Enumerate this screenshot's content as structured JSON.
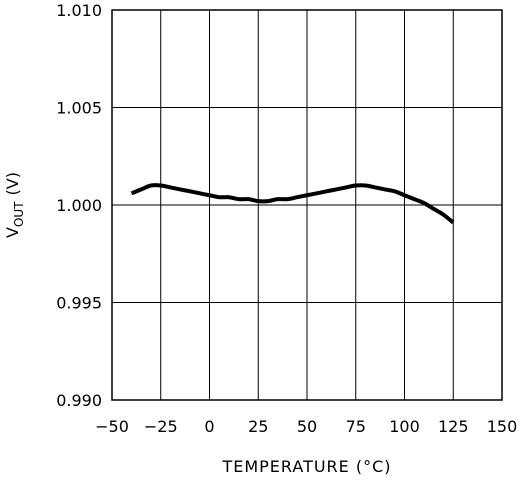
{
  "chart_data": {
    "type": "line",
    "xlabel": "TEMPERATURE (°C)",
    "ylabel_main": "V",
    "ylabel_sub": "OUT",
    "ylabel_unit": "(V)",
    "xlim": [
      -50,
      150
    ],
    "ylim": [
      0.99,
      1.01
    ],
    "x_ticks": [
      -50,
      -25,
      0,
      25,
      50,
      75,
      100,
      125,
      150
    ],
    "x_tick_labels": [
      "−50",
      "−25",
      "0",
      "25",
      "50",
      "75",
      "100",
      "125",
      "150"
    ],
    "y_ticks": [
      0.99,
      0.995,
      1.0,
      1.005,
      1.01
    ],
    "y_tick_labels": [
      "0.990",
      "0.995",
      "1.000",
      "1.005",
      "1.010"
    ],
    "grid": true,
    "series": [
      {
        "x": [
          -40,
          -35,
          -30,
          -25,
          -20,
          -15,
          -10,
          -5,
          0,
          5,
          10,
          15,
          20,
          25,
          30,
          35,
          40,
          45,
          50,
          55,
          60,
          65,
          70,
          75,
          80,
          85,
          90,
          95,
          100,
          105,
          110,
          115,
          120,
          125
        ],
        "y": [
          1.0006,
          1.0008,
          1.001,
          1.001,
          1.0009,
          1.0008,
          1.0007,
          1.0006,
          1.0005,
          1.0004,
          1.0004,
          1.0003,
          1.0003,
          1.0002,
          1.0002,
          1.0003,
          1.0003,
          1.0004,
          1.0005,
          1.0006,
          1.0007,
          1.0008,
          1.0009,
          1.001,
          1.001,
          1.0009,
          1.0008,
          1.0007,
          1.0005,
          1.0003,
          1.0001,
          0.9998,
          0.9995,
          0.9991
        ]
      }
    ]
  }
}
